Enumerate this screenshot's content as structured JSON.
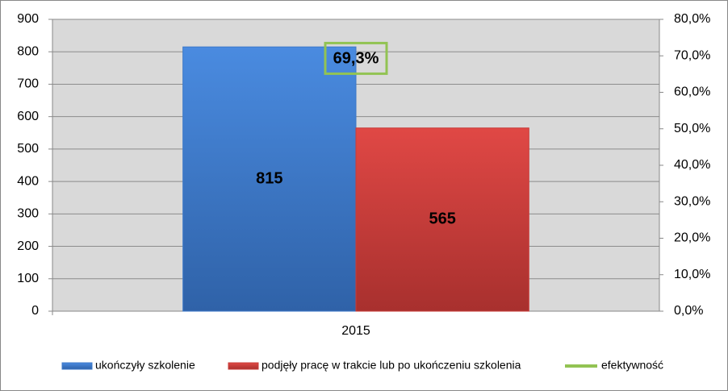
{
  "chart_data": {
    "type": "bar",
    "categories": [
      "2015"
    ],
    "series": [
      {
        "name": "ukończyły szkolenie",
        "color": "#3c78c8",
        "values": [
          815
        ]
      },
      {
        "name": "podjęły pracę w trakcie lub po ukończeniu szkolenia",
        "color": "#c83c3a",
        "values": [
          565
        ]
      },
      {
        "name": "efektywność",
        "color": "#92c353",
        "type": "line",
        "axis": "y2",
        "values": [
          69.3
        ],
        "value_labels": [
          "69,3%"
        ]
      }
    ],
    "ylim": [
      0,
      900
    ],
    "yticks": [
      0,
      100,
      200,
      300,
      400,
      500,
      600,
      700,
      800,
      900
    ],
    "y2lim": [
      0,
      80
    ],
    "y2ticks": [
      {
        "value": 0,
        "label": "0,0%"
      },
      {
        "value": 10,
        "label": "10,0%"
      },
      {
        "value": 20,
        "label": "20,0%"
      },
      {
        "value": 30,
        "label": "30,0%"
      },
      {
        "value": 40,
        "label": "40,0%"
      },
      {
        "value": 50,
        "label": "50,0%"
      },
      {
        "value": 60,
        "label": "60,0%"
      },
      {
        "value": 70,
        "label": "70,0%"
      },
      {
        "value": 80,
        "label": "80,0%"
      }
    ],
    "grid": true,
    "legend": "bottom"
  }
}
